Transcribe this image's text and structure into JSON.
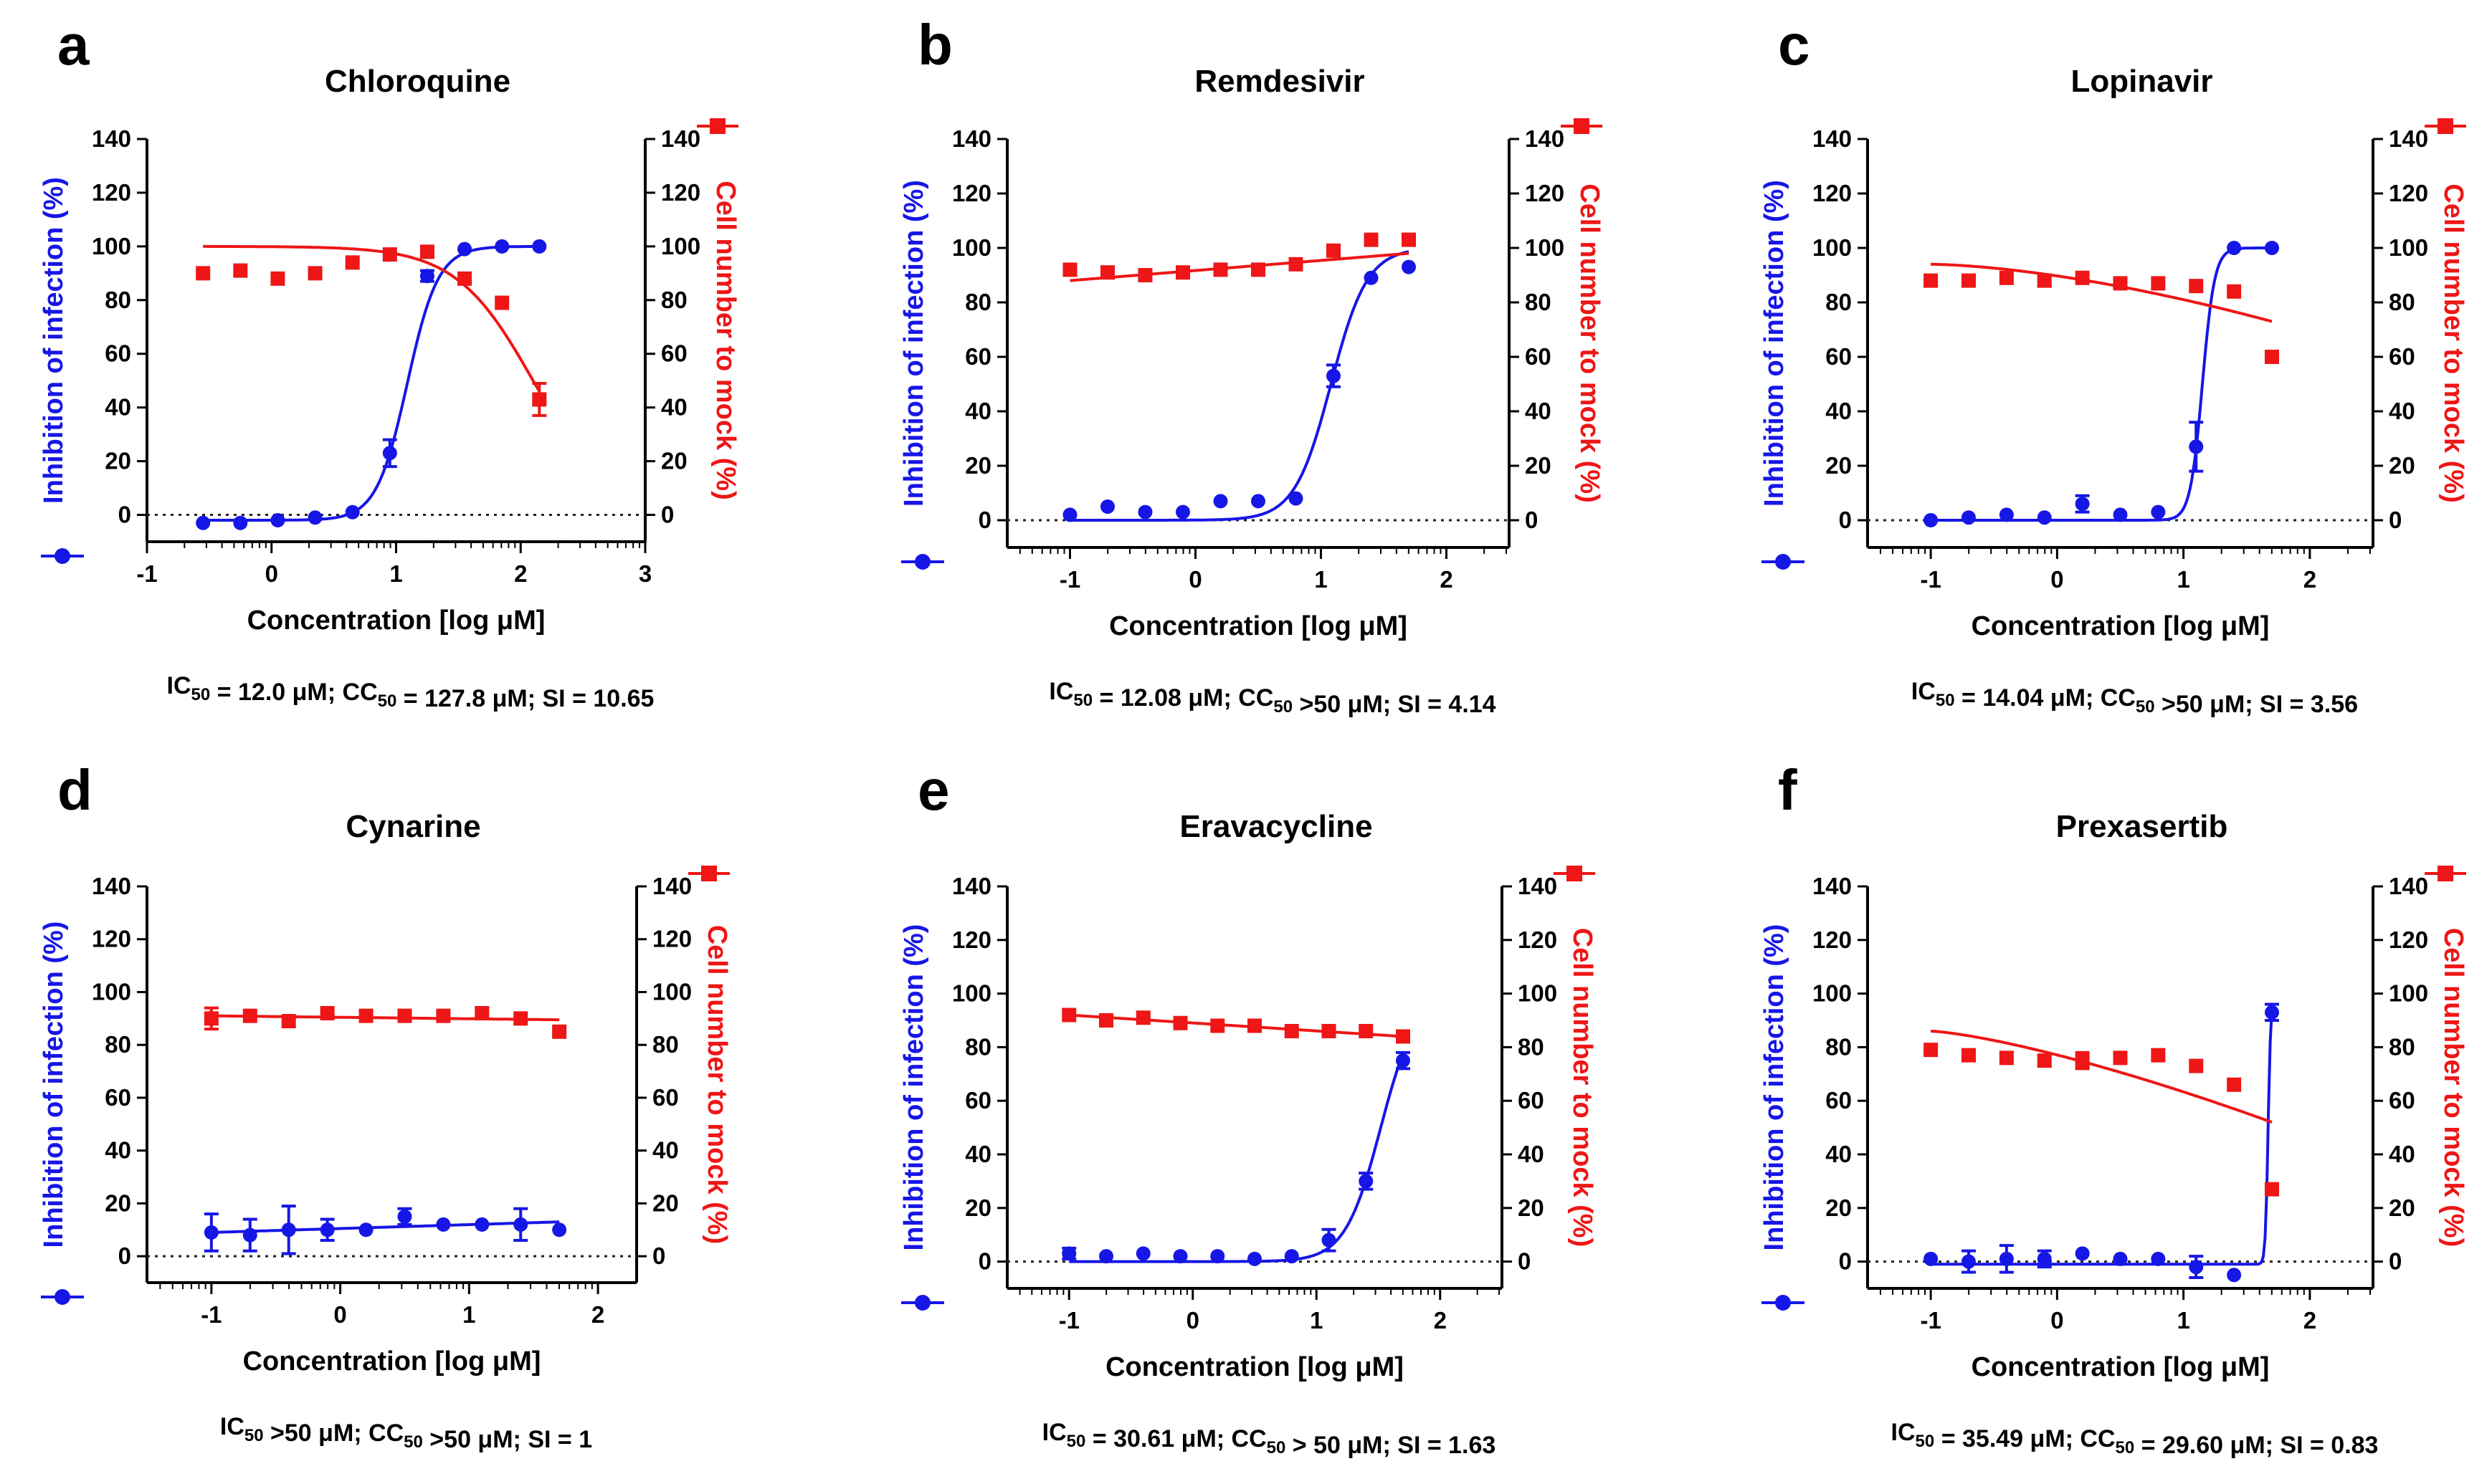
{
  "colors": {
    "inhibition": "#1616e6",
    "cell_number": "#ee1616",
    "axis": "#000000",
    "zero_line": "#222222"
  },
  "axis_text": {
    "x_label": "Concentration [log μM]",
    "y_left_label": "Inhibition of infection (%)",
    "y_right_label": "Cell number to mock  (%)",
    "y_ticks": [
      "0",
      "20",
      "40",
      "60",
      "80",
      "100",
      "120",
      "140"
    ]
  },
  "chart_data": [
    {
      "type": "scatter",
      "letter": "a",
      "title": "Chloroquine",
      "xlabel": "Concentration [log μM]",
      "xlim": [
        -1,
        3
      ],
      "ylim": [
        -10,
        140
      ],
      "x_ticks": [
        "-1",
        "0",
        "1",
        "2",
        "3"
      ],
      "x_tick_values": [
        -1,
        0,
        1,
        2,
        3
      ],
      "stat_parts": [
        {
          "t": "IC"
        },
        {
          "t": "50",
          "sub": true
        },
        {
          "t": " = 12.0 μM; CC"
        },
        {
          "t": "50",
          "sub": true
        },
        {
          "t": " = 127.8 μM; SI = 10.65"
        }
      ],
      "series": [
        {
          "name": "Inhibition of infection (%)",
          "axis": "left",
          "marker": "circle",
          "x": [
            -0.55,
            -0.25,
            0.05,
            0.35,
            0.65,
            0.95,
            1.25,
            1.55,
            1.85,
            2.15
          ],
          "values": [
            -3,
            -3,
            -2,
            -1,
            1,
            23,
            89,
            99,
            100,
            100
          ],
          "errors": [
            0,
            0,
            0,
            0,
            0,
            5,
            2,
            0,
            0,
            0
          ],
          "fit": {
            "kind": "hill",
            "bottom": -2,
            "top": 100,
            "logx50": 1.09,
            "slope": 3.5,
            "x_from": -0.55,
            "x_to": 2.15
          }
        },
        {
          "name": "Cell number to mock (%)",
          "axis": "right",
          "marker": "square",
          "x": [
            -0.55,
            -0.25,
            0.05,
            0.35,
            0.65,
            0.95,
            1.25,
            1.55,
            1.85,
            2.15
          ],
          "values": [
            90,
            91,
            88,
            90,
            94,
            97,
            98,
            88,
            79,
            43
          ],
          "errors": [
            0,
            0,
            0,
            0,
            0,
            0,
            0,
            0,
            0,
            6
          ],
          "fit": {
            "kind": "hill",
            "bottom": 0,
            "top": 100,
            "logx50": 2.1,
            "slope": -1.4,
            "x_from": -0.55,
            "x_to": 2.15
          }
        }
      ]
    },
    {
      "type": "scatter",
      "letter": "b",
      "title": "Remdesivir",
      "xlabel": "Concentration [log μM]",
      "xlim": [
        -1.5,
        2.5
      ],
      "ylim": [
        -10,
        140
      ],
      "x_ticks": [
        "-1",
        "0",
        "1",
        "2"
      ],
      "x_tick_values": [
        -1,
        0,
        1,
        2
      ],
      "stat_parts": [
        {
          "t": "IC"
        },
        {
          "t": "50",
          "sub": true
        },
        {
          "t": " = 12.08 μM; CC"
        },
        {
          "t": "50",
          "sub": true
        },
        {
          "t": " >50 μM; SI = 4.14"
        }
      ],
      "series": [
        {
          "name": "Inhibition of infection (%)",
          "axis": "left",
          "marker": "circle",
          "x": [
            -1.0,
            -0.7,
            -0.4,
            -0.1,
            0.2,
            0.5,
            0.8,
            1.1,
            1.4,
            1.7
          ],
          "values": [
            2,
            5,
            3,
            3,
            7,
            7,
            8,
            53,
            89,
            93
          ],
          "errors": [
            0,
            0,
            0,
            0,
            0,
            0,
            0,
            4,
            0,
            0
          ],
          "fit": {
            "kind": "hill",
            "bottom": 0,
            "top": 100,
            "logx50": 1.08,
            "slope": 3.0,
            "x_from": -1.0,
            "x_to": 1.7
          }
        },
        {
          "name": "Cell number to mock (%)",
          "axis": "right",
          "marker": "square",
          "x": [
            -1.0,
            -0.7,
            -0.4,
            -0.1,
            0.2,
            0.5,
            0.8,
            1.1,
            1.4,
            1.7
          ],
          "values": [
            92,
            91,
            90,
            91,
            92,
            92,
            94,
            99,
            103,
            103
          ],
          "errors": [
            0,
            0,
            0,
            0,
            0,
            0,
            0,
            0,
            0,
            0
          ],
          "fit": {
            "kind": "linear",
            "y_from": 88,
            "y_to": 98,
            "x_from": -1.0,
            "x_to": 1.7
          }
        }
      ]
    },
    {
      "type": "scatter",
      "letter": "c",
      "title": "Lopinavir",
      "xlabel": "Concentration [log μM]",
      "xlim": [
        -1.5,
        2.5
      ],
      "ylim": [
        -10,
        140
      ],
      "x_ticks": [
        "-1",
        "0",
        "1",
        "2"
      ],
      "x_tick_values": [
        -1,
        0,
        1,
        2
      ],
      "stat_parts": [
        {
          "t": "IC"
        },
        {
          "t": "50",
          "sub": true
        },
        {
          "t": " = 14.04 μM; CC"
        },
        {
          "t": "50",
          "sub": true
        },
        {
          "t": " >50 μM; SI = 3.56"
        }
      ],
      "series": [
        {
          "name": "Inhibition of infection (%)",
          "axis": "left",
          "marker": "circle",
          "x": [
            -1.0,
            -0.7,
            -0.4,
            -0.1,
            0.2,
            0.5,
            0.8,
            1.1,
            1.4,
            1.7
          ],
          "values": [
            0,
            1,
            2,
            1,
            6,
            2,
            3,
            27,
            100,
            100
          ],
          "errors": [
            0,
            0,
            0,
            0,
            3,
            0,
            0,
            9,
            0,
            0
          ],
          "fit": {
            "kind": "hill",
            "bottom": 0,
            "top": 100,
            "logx50": 1.15,
            "slope": 9.0,
            "x_from": -1.0,
            "x_to": 1.7
          }
        },
        {
          "name": "Cell number to mock (%)",
          "axis": "right",
          "marker": "square",
          "x": [
            -1.0,
            -0.7,
            -0.4,
            -0.1,
            0.2,
            0.5,
            0.8,
            1.1,
            1.4,
            1.7
          ],
          "values": [
            88,
            88,
            89,
            88,
            89,
            87,
            87,
            86,
            84,
            60
          ],
          "errors": [
            0,
            0,
            0,
            2,
            0,
            0,
            0,
            0,
            0,
            0
          ],
          "fit": {
            "kind": "curve",
            "y_from": 94,
            "y_to": 73,
            "power": 1.6,
            "x_from": -1.0,
            "x_to": 1.7
          }
        }
      ]
    },
    {
      "type": "scatter",
      "letter": "d",
      "title": "Cynarine",
      "xlabel": "Concentration [log μM]",
      "xlim": [
        -1.5,
        2.3
      ],
      "ylim": [
        -10,
        140
      ],
      "x_ticks": [
        "-1",
        "0",
        "1",
        "2"
      ],
      "x_tick_values": [
        -1,
        0,
        1,
        2
      ],
      "stat_parts": [
        {
          "t": "IC"
        },
        {
          "t": "50",
          "sub": true
        },
        {
          "t": " >50 μM; CC"
        },
        {
          "t": "50",
          "sub": true
        },
        {
          "t": " >50 μM; SI = 1"
        }
      ],
      "series": [
        {
          "name": "Inhibition of infection (%)",
          "axis": "left",
          "marker": "circle",
          "x": [
            -1.0,
            -0.7,
            -0.4,
            -0.1,
            0.2,
            0.5,
            0.8,
            1.1,
            1.4,
            1.7
          ],
          "values": [
            9,
            8,
            10,
            10,
            10,
            15,
            12,
            12,
            12,
            10
          ],
          "errors": [
            7,
            6,
            9,
            4,
            0,
            3,
            0,
            0,
            6,
            0
          ],
          "fit": {
            "kind": "linear",
            "y_from": 9,
            "y_to": 13,
            "x_from": -1.0,
            "x_to": 1.7
          }
        },
        {
          "name": "Cell number to mock (%)",
          "axis": "right",
          "marker": "square",
          "x": [
            -1.0,
            -0.7,
            -0.4,
            -0.1,
            0.2,
            0.5,
            0.8,
            1.1,
            1.4,
            1.7
          ],
          "values": [
            90,
            91,
            89,
            92,
            91,
            91,
            91,
            92,
            90,
            85
          ],
          "errors": [
            4,
            0,
            0,
            0,
            0,
            0,
            0,
            2,
            0,
            0
          ],
          "fit": {
            "kind": "linear",
            "y_from": 91,
            "y_to": 89.5,
            "x_from": -1.0,
            "x_to": 1.7
          }
        }
      ]
    },
    {
      "type": "scatter",
      "letter": "e",
      "title": "Eravacycline",
      "xlabel": "Concentration [log μM]",
      "xlim": [
        -1.5,
        2.5
      ],
      "ylim": [
        -10,
        140
      ],
      "x_ticks": [
        "-1",
        "0",
        "1",
        "2"
      ],
      "x_tick_values": [
        -1,
        0,
        1,
        2
      ],
      "stat_parts": [
        {
          "t": "IC"
        },
        {
          "t": "50",
          "sub": true
        },
        {
          "t": " = 30.61 μM; CC"
        },
        {
          "t": "50",
          "sub": true
        },
        {
          "t": " > 50 μM; SI = 1.63"
        }
      ],
      "series": [
        {
          "name": "Inhibition of infection (%)",
          "axis": "left",
          "marker": "circle",
          "x": [
            -1.0,
            -0.7,
            -0.4,
            -0.1,
            0.2,
            0.5,
            0.8,
            1.1,
            1.4,
            1.7
          ],
          "values": [
            3,
            2,
            3,
            2,
            2,
            1,
            2,
            8,
            30,
            75
          ],
          "errors": [
            2,
            0,
            0,
            0,
            0,
            0,
            0,
            4,
            3,
            3
          ],
          "fit": {
            "kind": "hill",
            "bottom": 0,
            "top": 100,
            "logx50": 1.52,
            "slope": 3.0,
            "x_from": -1.0,
            "x_to": 1.7
          }
        },
        {
          "name": "Cell number to mock (%)",
          "axis": "right",
          "marker": "square",
          "x": [
            -1.0,
            -0.7,
            -0.4,
            -0.1,
            0.2,
            0.5,
            0.8,
            1.1,
            1.4,
            1.7
          ],
          "values": [
            92,
            90,
            91,
            89,
            88,
            88,
            86,
            86,
            86,
            84
          ],
          "errors": [
            0,
            0,
            0,
            0,
            0,
            0,
            0,
            0,
            0,
            0
          ],
          "fit": {
            "kind": "linear",
            "y_from": 92,
            "y_to": 84,
            "x_from": -1.0,
            "x_to": 1.7
          }
        }
      ]
    },
    {
      "type": "scatter",
      "letter": "f",
      "title": "Prexasertib",
      "xlabel": "Concentration [log μM]",
      "xlim": [
        -1.5,
        2.5
      ],
      "ylim": [
        -10,
        140
      ],
      "x_ticks": [
        "-1",
        "0",
        "1",
        "2"
      ],
      "x_tick_values": [
        -1,
        0,
        1,
        2
      ],
      "stat_parts": [
        {
          "t": "IC"
        },
        {
          "t": "50",
          "sub": true
        },
        {
          "t": " = 35.49 μM; CC"
        },
        {
          "t": "50",
          "sub": true
        },
        {
          "t": " = 29.60 μM; SI = 0.83"
        }
      ],
      "series": [
        {
          "name": "Inhibition of infection (%)",
          "axis": "left",
          "marker": "circle",
          "x": [
            -1.0,
            -0.7,
            -0.4,
            -0.1,
            0.2,
            0.5,
            0.8,
            1.1,
            1.4,
            1.7
          ],
          "values": [
            1,
            0,
            1,
            1,
            3,
            1,
            1,
            -2,
            -5,
            93
          ],
          "errors": [
            0,
            4,
            5,
            3,
            0,
            0,
            0,
            4,
            0,
            3
          ],
          "fit": {
            "kind": "hill",
            "bottom": -1,
            "top": 100,
            "logx50": 1.67,
            "slope": 40,
            "x_from": -1.0,
            "x_to": 1.7
          }
        },
        {
          "name": "Cell number to mock (%)",
          "axis": "right",
          "marker": "square",
          "x": [
            -1.0,
            -0.7,
            -0.4,
            -0.1,
            0.2,
            0.5,
            0.8,
            1.1,
            1.4,
            1.7
          ],
          "values": [
            79,
            77,
            76,
            75,
            75,
            76,
            77,
            73,
            66,
            27
          ],
          "errors": [
            0,
            0,
            0,
            2,
            3,
            0,
            0,
            0,
            0,
            0
          ],
          "fit": {
            "kind": "curve",
            "y_from": 86,
            "y_to": 52,
            "power": 1.35,
            "x_from": -1.0,
            "x_to": 1.7
          }
        }
      ]
    }
  ]
}
